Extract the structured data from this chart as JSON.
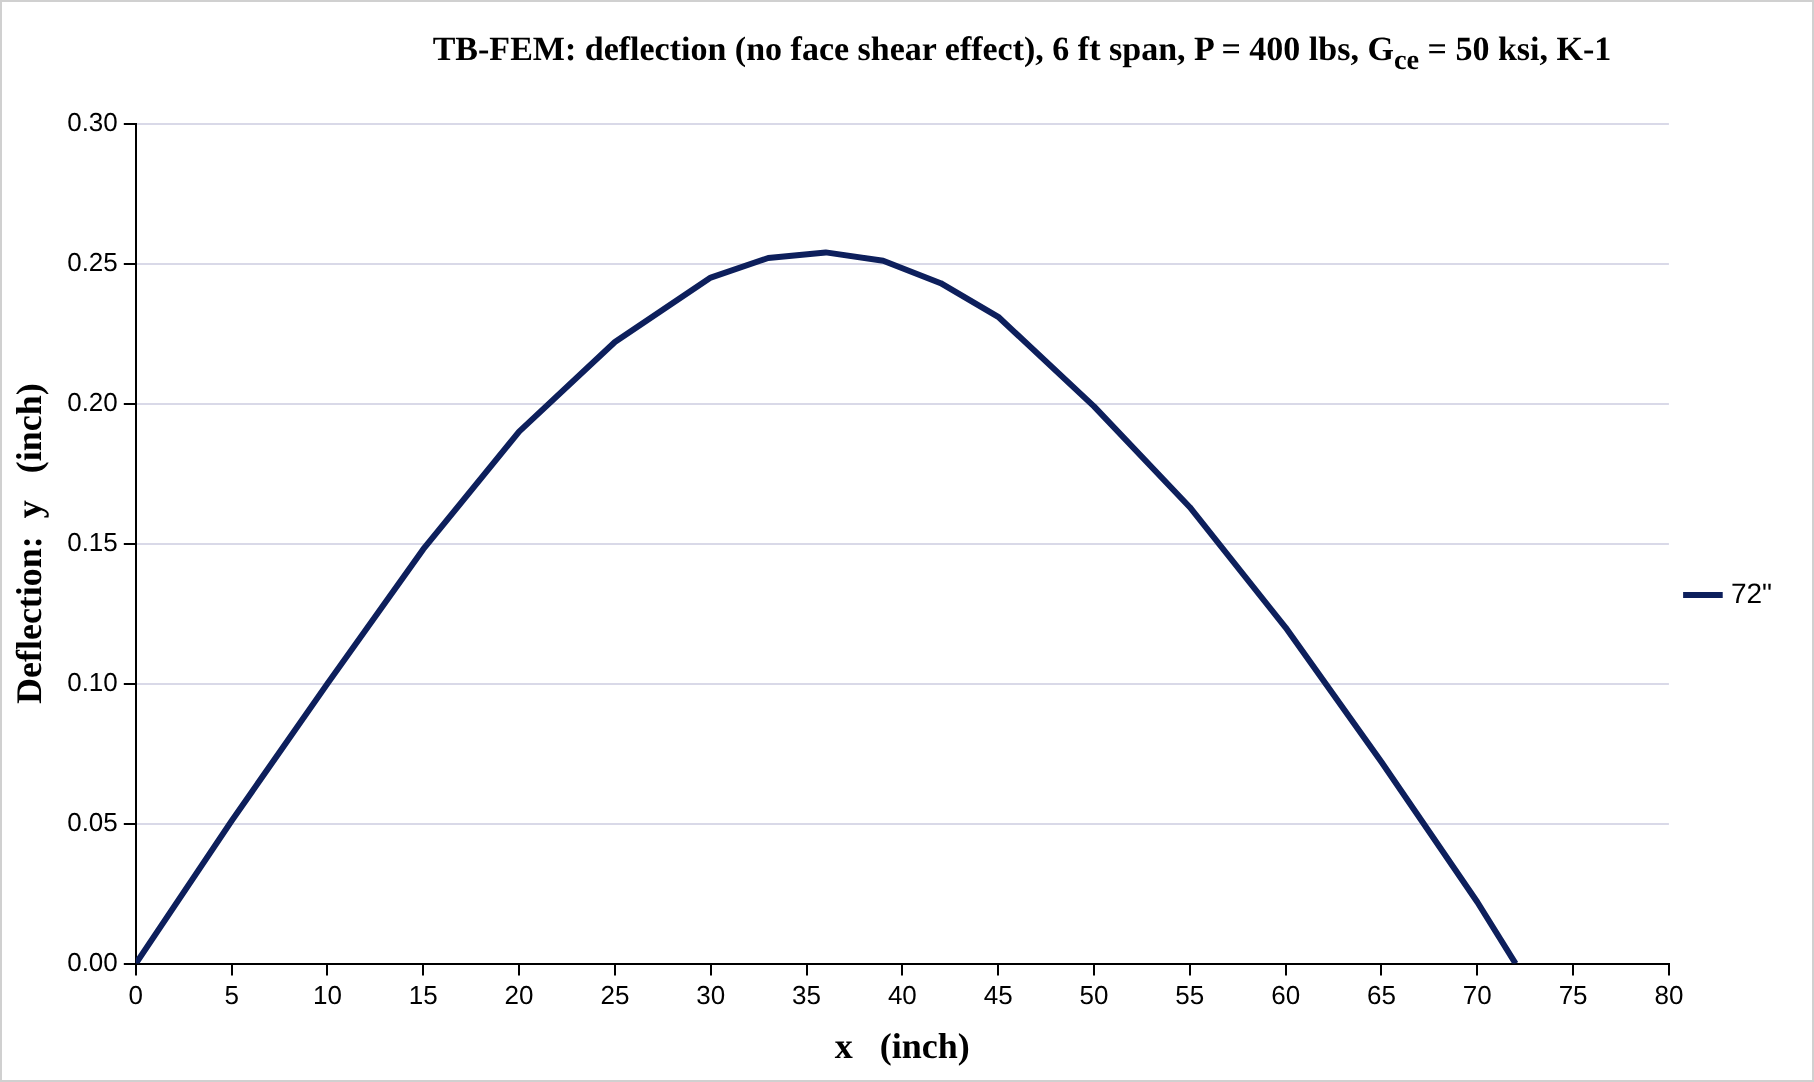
{
  "chart_data": {
    "type": "line",
    "title": "TB-FEM: deflection (no face shear effect),  6 ft span, P = 400 lbs, G$_{ce}$ = 50 ksi, K-1",
    "xlabel": "x   (inch)",
    "ylabel": "Deflection:  y   (inch)",
    "xlim": [
      0,
      80
    ],
    "xticks": [
      0,
      5,
      10,
      15,
      20,
      25,
      30,
      35,
      40,
      45,
      50,
      55,
      60,
      65,
      70,
      75,
      80
    ],
    "ylim": [
      0,
      0.3
    ],
    "yticks": [
      {
        "value": 0,
        "label": "0.00"
      },
      {
        "value": 0.05,
        "label": "0.05"
      },
      {
        "value": 0.1,
        "label": "0.10"
      },
      {
        "value": 0.15,
        "label": "0.15"
      },
      {
        "value": 0.2,
        "label": "0.20"
      },
      {
        "value": 0.25,
        "label": "0.25"
      },
      {
        "value": 0.3,
        "label": "0.30"
      }
    ],
    "series": [
      {
        "name": "72\"",
        "color": "#0d1f5c",
        "x": [
          0,
          5,
          10,
          15,
          20,
          25,
          30,
          33,
          36,
          39,
          42,
          45,
          50,
          55,
          60,
          65,
          70,
          72
        ],
        "values": [
          0,
          0.051,
          0.1,
          0.148,
          0.19,
          0.222,
          0.245,
          0.252,
          0.254,
          0.251,
          0.243,
          0.231,
          0.199,
          0.163,
          0.12,
          0.072,
          0.022,
          0
        ]
      }
    ],
    "grid": "y",
    "legend": "right",
    "marker": "none",
    "line_style": "solid"
  }
}
